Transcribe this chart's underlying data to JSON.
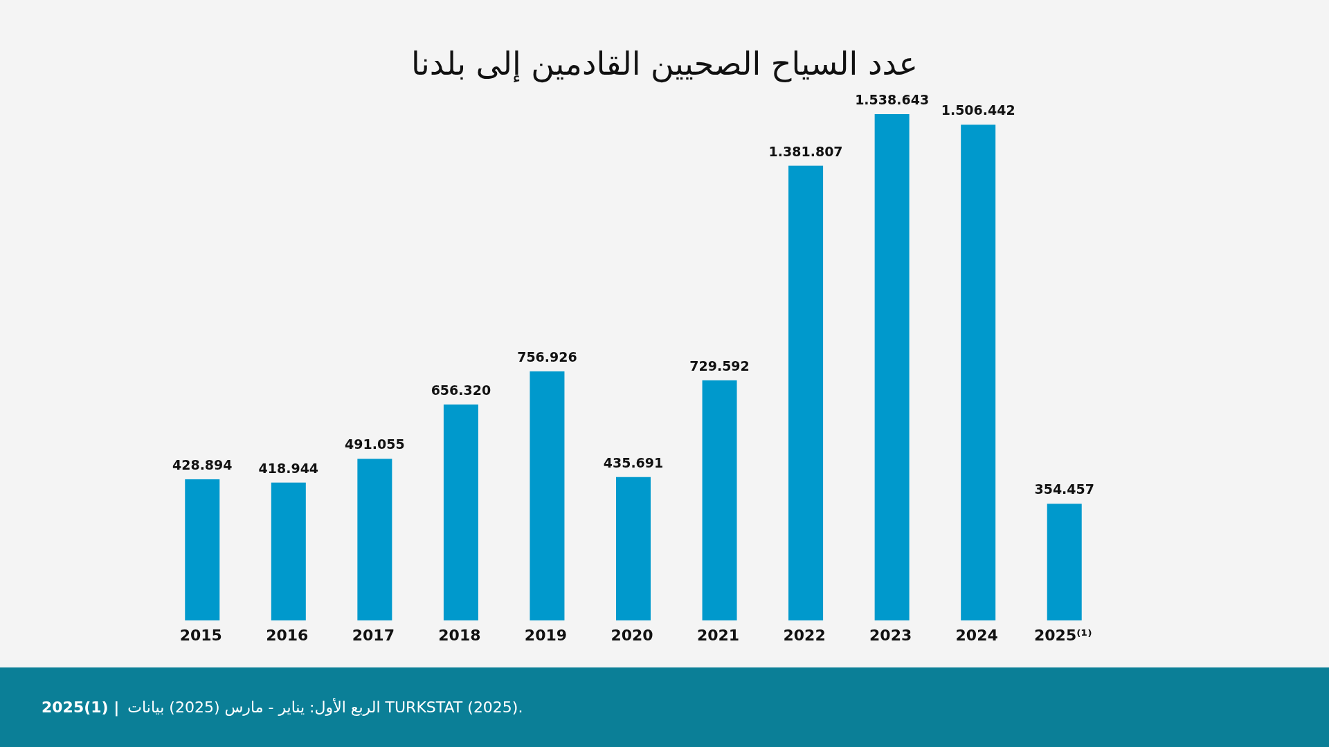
{
  "chart_data": {
    "type": "bar",
    "title": "عدد السياح الصحيين القادمين إلى بلدنا",
    "categories": [
      "2015",
      "2016",
      "2017",
      "2018",
      "2019",
      "2020",
      "2021",
      "2022",
      "2023",
      "2024",
      "2025⁽¹⁾"
    ],
    "values": [
      428894,
      418944,
      491055,
      656320,
      756926,
      435691,
      729592,
      1381807,
      1538643,
      1506442,
      354457
    ],
    "value_labels": [
      "428.894",
      "418.944",
      "491.055",
      "656.320",
      "756.926",
      "435.691",
      "729.592",
      "1.381.807",
      "1.538.643",
      "1.506.442",
      "354.457"
    ],
    "color": "#0099cc",
    "annotations": [
      "2025(1) |",
      "الربع الأول: يناير - مارس (2025) بيانات TURKSTAT (2025)."
    ]
  }
}
